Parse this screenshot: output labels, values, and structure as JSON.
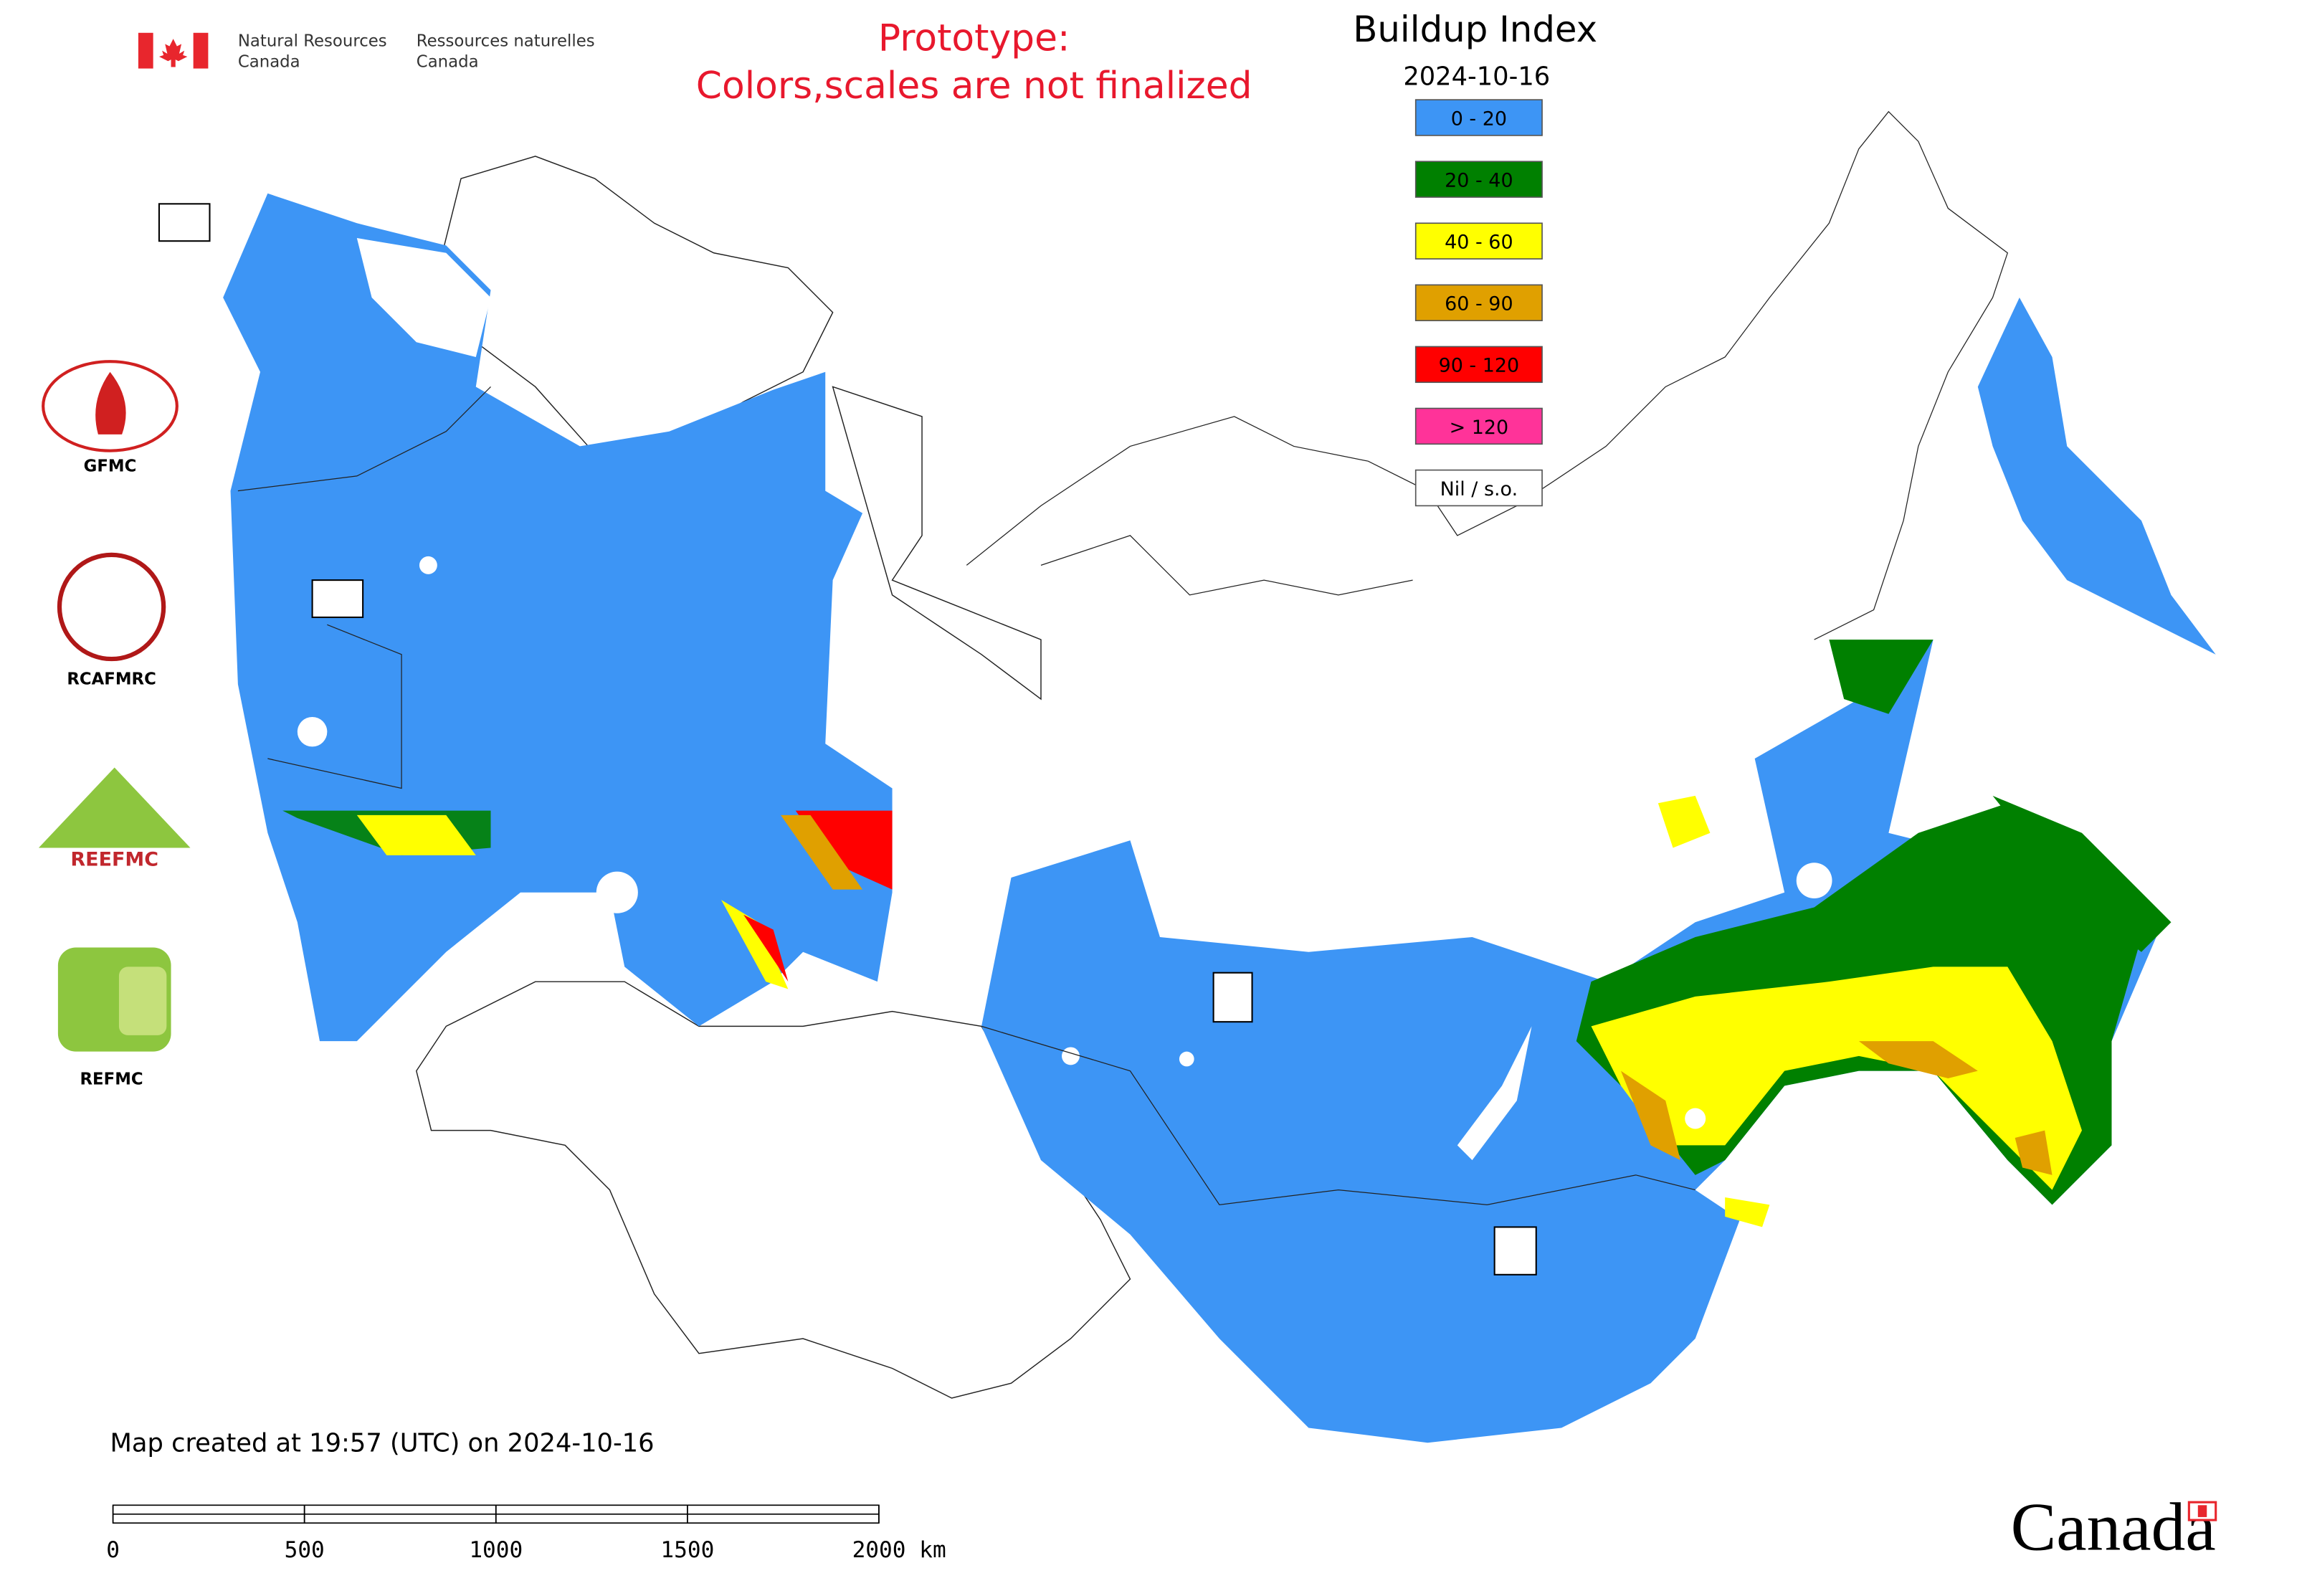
{
  "header": {
    "department_en": [
      "Natural Resources",
      "Canada"
    ],
    "department_fr": [
      "Ressources naturelles",
      "Canada"
    ]
  },
  "notice": [
    "Prototype:",
    "Colors,scales are not finalized"
  ],
  "legend": {
    "title": "Buildup Index",
    "date": "2024-10-16",
    "items": [
      {
        "label": "0 - 20",
        "color": "#3d95f5"
      },
      {
        "label": "20 - 40",
        "color": "#008000"
      },
      {
        "label": "40 - 60",
        "color": "#ffff00"
      },
      {
        "label": "60 - 90",
        "color": "#e0a000"
      },
      {
        "label": "90 - 120",
        "color": "#ff0000"
      },
      {
        "label": "> 120",
        "color": "#ff3399"
      },
      {
        "label": "Nil / s.o.",
        "color": "#ffffff"
      }
    ]
  },
  "partners": [
    "GFMC",
    "RCAFMRC",
    "REEFMC",
    "REFMC"
  ],
  "map_created": "Map created at 19:57 (UTC) on 2024-10-16",
  "scale_bar": {
    "ticks": [
      0,
      500,
      1000,
      1500,
      {
        "value": 2000,
        "label": "2000 km"
      }
    ]
  },
  "wordmark": "Canada"
}
